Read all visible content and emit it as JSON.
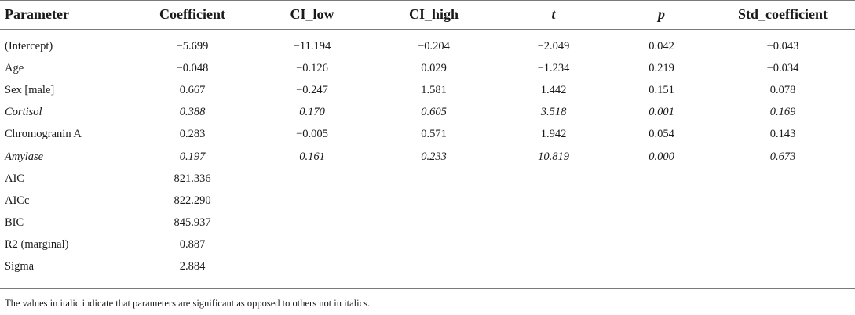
{
  "table": {
    "headers": [
      "Parameter",
      "Coefficient",
      "CI_low",
      "CI_high",
      "t",
      "p",
      "Std_coefficient"
    ],
    "rows": [
      {
        "cells": [
          "(Intercept)",
          "−5.699",
          "−11.194",
          "−0.204",
          "−2.049",
          "0.042",
          "−0.043"
        ],
        "italic": false
      },
      {
        "cells": [
          "Age",
          "−0.048",
          "−0.126",
          "0.029",
          "−1.234",
          "0.219",
          "−0.034"
        ],
        "italic": false
      },
      {
        "cells": [
          "Sex [male]",
          "0.667",
          "−0.247",
          "1.581",
          "1.442",
          "0.151",
          "0.078"
        ],
        "italic": false
      },
      {
        "cells": [
          "Cortisol",
          "0.388",
          "0.170",
          "0.605",
          "3.518",
          "0.001",
          "0.169"
        ],
        "italic": true
      },
      {
        "cells": [
          "Chromogranin A",
          "0.283",
          "−0.005",
          "0.571",
          "1.942",
          "0.054",
          "0.143"
        ],
        "italic": false
      },
      {
        "cells": [
          "Amylase",
          "0.197",
          "0.161",
          "0.233",
          "10.819",
          "0.000",
          "0.673"
        ],
        "italic": true
      },
      {
        "cells": [
          "AIC",
          "821.336",
          "",
          "",
          "",
          "",
          ""
        ],
        "italic": false
      },
      {
        "cells": [
          "AICc",
          "822.290",
          "",
          "",
          "",
          "",
          ""
        ],
        "italic": false
      },
      {
        "cells": [
          "BIC",
          "845.937",
          "",
          "",
          "",
          "",
          ""
        ],
        "italic": false
      },
      {
        "cells": [
          "R2 (marginal)",
          "0.887",
          "",
          "",
          "",
          "",
          ""
        ],
        "italic": false
      },
      {
        "cells": [
          "Sigma",
          "2.884",
          "",
          "",
          "",
          "",
          ""
        ],
        "italic": false
      }
    ]
  },
  "footnote": "The values in italic indicate that parameters are significant as opposed to others not in italics."
}
